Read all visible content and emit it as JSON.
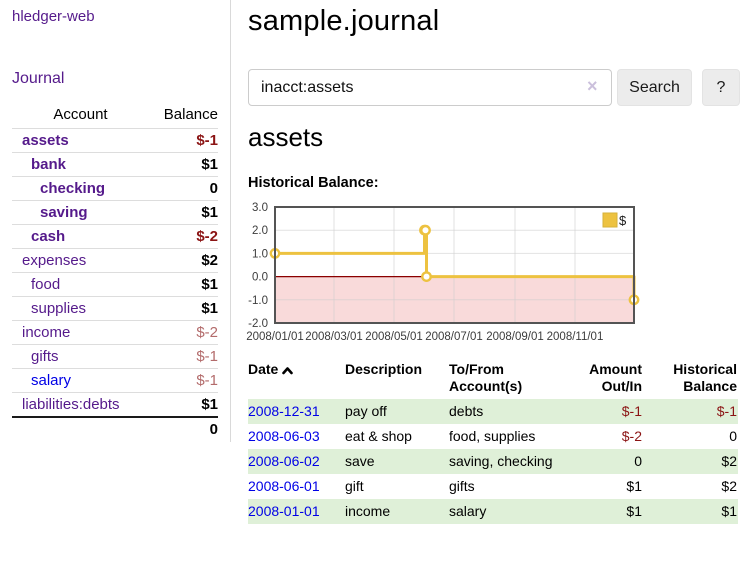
{
  "app": {
    "brand": "hledger-web"
  },
  "nav": {
    "journal": "Journal"
  },
  "sidebar": {
    "headers": {
      "account": "Account",
      "balance": "Balance"
    },
    "accounts": [
      {
        "name": "assets",
        "balance": "$-1",
        "depth": 1,
        "emphasis": true,
        "link_style": "purple"
      },
      {
        "name": "bank",
        "balance": "$1",
        "depth": 2,
        "emphasis": true,
        "link_style": "purple"
      },
      {
        "name": "checking",
        "balance": "0",
        "depth": 3,
        "emphasis": true,
        "link_style": "purple"
      },
      {
        "name": "saving",
        "balance": "$1",
        "depth": 3,
        "emphasis": true,
        "link_style": "purple"
      },
      {
        "name": "cash",
        "balance": "$-2",
        "depth": 2,
        "emphasis": true,
        "link_style": "purple"
      },
      {
        "name": "expenses",
        "balance": "$2",
        "depth": 1,
        "emphasis": false,
        "link_style": "purple"
      },
      {
        "name": "food",
        "balance": "$1",
        "depth": 2,
        "emphasis": false,
        "link_style": "purple"
      },
      {
        "name": "supplies",
        "balance": "$1",
        "depth": 2,
        "emphasis": false,
        "link_style": "purple"
      },
      {
        "name": "income",
        "balance": "$-2",
        "depth": 1,
        "emphasis": false,
        "link_style": "purple"
      },
      {
        "name": "gifts",
        "balance": "$-1",
        "depth": 2,
        "emphasis": false,
        "link_style": "purple"
      },
      {
        "name": "salary",
        "balance": "$-1",
        "depth": 2,
        "emphasis": false,
        "link_style": "blue"
      },
      {
        "name": "liabilities:debts",
        "balance": "$1",
        "depth": 1,
        "emphasis": false,
        "link_style": "purple"
      }
    ],
    "total": "0"
  },
  "main": {
    "title": "sample.journal",
    "search": {
      "value": "inacct:assets",
      "clear_icon": "×",
      "button": "Search",
      "help": "?"
    },
    "account_heading": "assets",
    "chart_label": "Historical Balance:"
  },
  "register": {
    "headers": {
      "date": "Date",
      "sort_icon": "chevron-up-icon",
      "description": "Description",
      "tofrom": "To/From Account(s)",
      "amount": "Amount Out/In",
      "balance": "Historical Balance"
    },
    "rows": [
      {
        "date": "2008-12-31",
        "description": "pay off",
        "tofrom": "debts",
        "amount": "$-1",
        "balance": "$-1"
      },
      {
        "date": "2008-06-03",
        "description": "eat & shop",
        "tofrom": "food, supplies",
        "amount": "$-2",
        "balance": "0"
      },
      {
        "date": "2008-06-02",
        "description": "save",
        "tofrom": "saving, checking",
        "amount": "0",
        "balance": "$2"
      },
      {
        "date": "2008-06-01",
        "description": "gift",
        "tofrom": "gifts",
        "amount": "$1",
        "balance": "$2"
      },
      {
        "date": "2008-01-01",
        "description": "income",
        "tofrom": "salary",
        "amount": "$1",
        "balance": "$1"
      }
    ]
  },
  "chart_data": {
    "type": "line",
    "title": "Historical Balance:",
    "legend": {
      "label": "$",
      "position": "top-right"
    },
    "series": [
      {
        "name": "$",
        "step": true,
        "points": [
          [
            "2008-01-01",
            1
          ],
          [
            "2008-06-01",
            2
          ],
          [
            "2008-06-02",
            2
          ],
          [
            "2008-06-03",
            0
          ],
          [
            "2008-12-31",
            -1
          ]
        ]
      }
    ],
    "x_domain": [
      "2008-01-01",
      "2008-12-31"
    ],
    "x_ticks": [
      {
        "date": "2008-01-01",
        "label": "2008/01/01"
      },
      {
        "date": "2008-03-01",
        "label": "2008/03/01"
      },
      {
        "date": "2008-05-01",
        "label": "2008/05/01"
      },
      {
        "date": "2008-07-01",
        "label": "2008/07/01"
      },
      {
        "date": "2008-09-01",
        "label": "2008/09/01"
      },
      {
        "date": "2008-11-01",
        "label": "2008/11/01"
      }
    ],
    "y_ticks": [
      3,
      2,
      1,
      0,
      -1,
      -2
    ],
    "ylim": [
      -2,
      3
    ],
    "grid": true,
    "colors": {
      "line": "#edc240",
      "point_fill": "#ffffff",
      "negative_region": "#f9dada",
      "zero_line": "#8b0000",
      "border": "#545454",
      "grid": "#cfcfcf",
      "tick_text": "#3c3c3c"
    }
  }
}
